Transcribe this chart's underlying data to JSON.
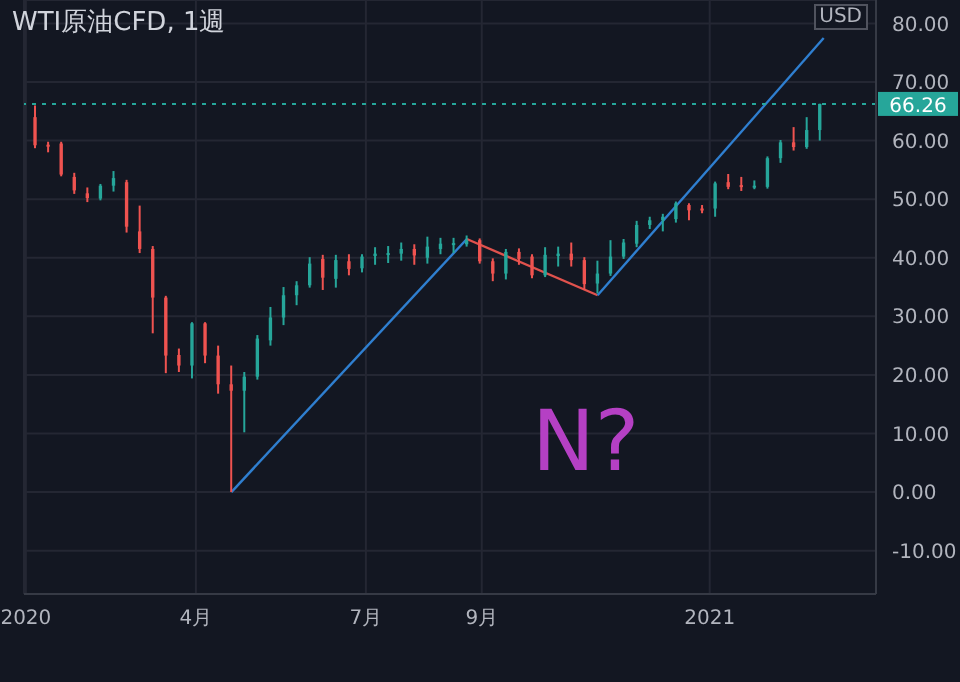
{
  "chart_data": {
    "type": "candlestick",
    "title": "WTI原油CFD, 1週",
    "annotations": [
      "USD",
      "N?"
    ],
    "x": [
      "2020-01-06",
      "2020-01-13",
      "2020-01-20",
      "2020-01-27",
      "2020-02-03",
      "2020-02-10",
      "2020-02-17",
      "2020-02-24",
      "2020-03-02",
      "2020-03-09",
      "2020-03-16",
      "2020-03-23",
      "2020-03-30",
      "2020-04-06",
      "2020-04-13",
      "2020-04-20",
      "2020-04-27",
      "2020-05-04",
      "2020-05-11",
      "2020-05-18",
      "2020-05-25",
      "2020-06-01",
      "2020-06-08",
      "2020-06-15",
      "2020-06-22",
      "2020-06-29",
      "2020-07-06",
      "2020-07-13",
      "2020-07-20",
      "2020-07-27",
      "2020-08-03",
      "2020-08-10",
      "2020-08-17",
      "2020-08-24",
      "2020-08-31",
      "2020-09-07",
      "2020-09-14",
      "2020-09-21",
      "2020-09-28",
      "2020-10-05",
      "2020-10-12",
      "2020-10-19",
      "2020-10-26",
      "2020-11-02",
      "2020-11-09",
      "2020-11-16",
      "2020-11-23",
      "2020-11-30",
      "2020-12-07",
      "2020-12-14",
      "2020-12-21",
      "2020-12-28",
      "2021-01-04",
      "2021-01-11",
      "2021-01-18",
      "2021-01-25",
      "2021-02-01",
      "2021-02-08",
      "2021-02-15",
      "2021-02-22",
      "2021-03-01"
    ],
    "ohlc": [
      [
        64.0,
        66.0,
        58.7,
        59.2
      ],
      [
        59.3,
        59.8,
        58.0,
        59.0
      ],
      [
        59.5,
        59.8,
        53.9,
        54.2
      ],
      [
        53.8,
        54.5,
        50.9,
        51.5
      ],
      [
        51.0,
        52.0,
        49.5,
        50.2
      ],
      [
        50.1,
        52.6,
        49.8,
        52.3
      ],
      [
        52.3,
        54.8,
        51.3,
        53.6
      ],
      [
        52.9,
        53.3,
        44.3,
        45.3
      ],
      [
        44.5,
        48.9,
        40.8,
        41.5
      ],
      [
        41.5,
        42.0,
        27.1,
        33.2
      ],
      [
        33.2,
        33.5,
        20.3,
        23.3
      ],
      [
        23.4,
        24.5,
        20.5,
        21.6
      ],
      [
        21.6,
        29.0,
        19.4,
        28.8
      ],
      [
        28.8,
        29.0,
        22.0,
        23.3
      ],
      [
        23.3,
        25.0,
        16.8,
        18.4
      ],
      [
        18.4,
        21.6,
        0.0,
        17.3
      ],
      [
        17.3,
        20.5,
        10.2,
        19.7
      ],
      [
        19.7,
        26.8,
        19.2,
        26.2
      ],
      [
        25.9,
        31.6,
        25.0,
        29.8
      ],
      [
        29.8,
        35.0,
        28.5,
        33.6
      ],
      [
        33.6,
        36.0,
        31.9,
        35.3
      ],
      [
        35.3,
        40.1,
        34.9,
        39.0
      ],
      [
        39.8,
        40.5,
        34.5,
        36.6
      ],
      [
        36.4,
        40.5,
        34.9,
        39.6
      ],
      [
        39.4,
        40.6,
        37.0,
        38.1
      ],
      [
        38.2,
        40.6,
        37.5,
        40.2
      ],
      [
        40.3,
        41.8,
        38.8,
        40.7
      ],
      [
        40.7,
        42.0,
        39.1,
        40.8
      ],
      [
        40.7,
        42.6,
        39.5,
        41.5
      ],
      [
        41.5,
        42.3,
        38.8,
        40.4
      ],
      [
        40.0,
        43.6,
        39.0,
        41.9
      ],
      [
        41.5,
        43.4,
        40.6,
        42.4
      ],
      [
        42.3,
        43.4,
        40.8,
        42.5
      ],
      [
        42.3,
        43.8,
        41.9,
        43.0
      ],
      [
        43.0,
        43.3,
        39.0,
        39.4
      ],
      [
        39.4,
        39.9,
        36.0,
        37.3
      ],
      [
        37.3,
        41.5,
        36.3,
        41.0
      ],
      [
        41.0,
        41.6,
        38.8,
        39.8
      ],
      [
        40.2,
        40.6,
        36.5,
        37.0
      ],
      [
        37.0,
        41.8,
        36.7,
        40.5
      ],
      [
        40.3,
        41.9,
        38.5,
        40.7
      ],
      [
        40.7,
        42.6,
        38.5,
        39.6
      ],
      [
        39.6,
        40.1,
        34.5,
        35.5
      ],
      [
        35.6,
        39.5,
        33.9,
        37.3
      ],
      [
        37.3,
        43.0,
        36.9,
        40.2
      ],
      [
        40.2,
        43.2,
        39.8,
        42.6
      ],
      [
        42.4,
        46.3,
        41.8,
        45.6
      ],
      [
        45.6,
        47.0,
        44.9,
        46.4
      ],
      [
        46.4,
        47.5,
        44.5,
        47.0
      ],
      [
        46.6,
        49.6,
        46.0,
        49.3
      ],
      [
        49.0,
        49.3,
        46.4,
        48.1
      ],
      [
        48.4,
        49.0,
        47.6,
        48.2
      ],
      [
        48.4,
        53.0,
        47.0,
        52.7
      ],
      [
        52.9,
        54.3,
        51.7,
        52.1
      ],
      [
        52.4,
        53.8,
        51.4,
        52.2
      ],
      [
        52.2,
        53.2,
        51.7,
        52.3
      ],
      [
        52.1,
        57.3,
        51.8,
        57.0
      ],
      [
        57.0,
        60.1,
        56.2,
        59.7
      ],
      [
        59.7,
        62.3,
        58.3,
        58.9
      ],
      [
        58.9,
        64.0,
        58.6,
        61.8
      ],
      [
        61.8,
        66.3,
        60.0,
        66.26
      ]
    ],
    "colors": [
      "#ef5350",
      "#ef5350",
      "#ef5350",
      "#ef5350",
      "#ef5350",
      "#26a69a",
      "#26a69a",
      "#ef5350",
      "#ef5350",
      "#ef5350",
      "#ef5350",
      "#ef5350",
      "#26a69a",
      "#ef5350",
      "#ef5350",
      "#ef5350",
      "#26a69a",
      "#26a69a",
      "#26a69a",
      "#26a69a",
      "#26a69a",
      "#26a69a",
      "#ef5350",
      "#26a69a",
      "#ef5350",
      "#26a69a",
      "#26a69a",
      "#26a69a",
      "#26a69a",
      "#ef5350",
      "#26a69a",
      "#26a69a",
      "#26a69a",
      "#26a69a",
      "#ef5350",
      "#ef5350",
      "#26a69a",
      "#ef5350",
      "#ef5350",
      "#26a69a",
      "#26a69a",
      "#ef5350",
      "#ef5350",
      "#26a69a",
      "#26a69a",
      "#26a69a",
      "#26a69a",
      "#26a69a",
      "#26a69a",
      "#26a69a",
      "#ef5350",
      "#ef5350",
      "#26a69a",
      "#ef5350",
      "#ef5350",
      "#26a69a",
      "#26a69a",
      "#26a69a",
      "#ef5350",
      "#26a69a",
      "#26a69a"
    ],
    "series": [
      {
        "type": "line",
        "x": [
          "2020-04-20",
          "2020-08-24"
        ],
        "values": [
          0,
          43.2
        ],
        "color": "#2f7fd0"
      },
      {
        "type": "line",
        "x": [
          "2020-08-24",
          "2020-11-02"
        ],
        "values": [
          43.2,
          33.6
        ],
        "color": "#e0524d"
      },
      {
        "type": "line",
        "x": [
          "2020-11-02",
          "2021-03-03"
        ],
        "values": [
          33.6,
          77.5
        ],
        "color": "#2f7fd0"
      }
    ],
    "xlim": [
      "2019-12-31",
      "2021-03-31"
    ],
    "xticks": [
      {
        "value": "2020-01-01",
        "label": "2020"
      },
      {
        "value": "2020-04-01",
        "label": "4月"
      },
      {
        "value": "2020-07-01",
        "label": "7月"
      },
      {
        "value": "2020-09-01",
        "label": "9月"
      },
      {
        "value": "2021-01-01",
        "label": "2021"
      }
    ],
    "ylim": [
      -17.4,
      84
    ],
    "yticks": [
      {
        "value": -10,
        "label": "-10.00"
      },
      {
        "value": 0,
        "label": "0.00"
      },
      {
        "value": 10,
        "label": "10.00"
      },
      {
        "value": 20,
        "label": "20.00"
      },
      {
        "value": 30,
        "label": "30.00"
      },
      {
        "value": 40,
        "label": "40.00"
      },
      {
        "value": 50,
        "label": "50.00"
      },
      {
        "value": 60,
        "label": "60.00"
      },
      {
        "value": 70,
        "label": "70.00"
      },
      {
        "value": 80,
        "label": "80.00"
      }
    ],
    "ref_lines": [
      {
        "axis": "y",
        "value": 66.26,
        "label": "66.26",
        "color": "#26a69a",
        "line_style": "dotted"
      }
    ],
    "grid": true,
    "marker": "none",
    "line_style": "solid"
  }
}
